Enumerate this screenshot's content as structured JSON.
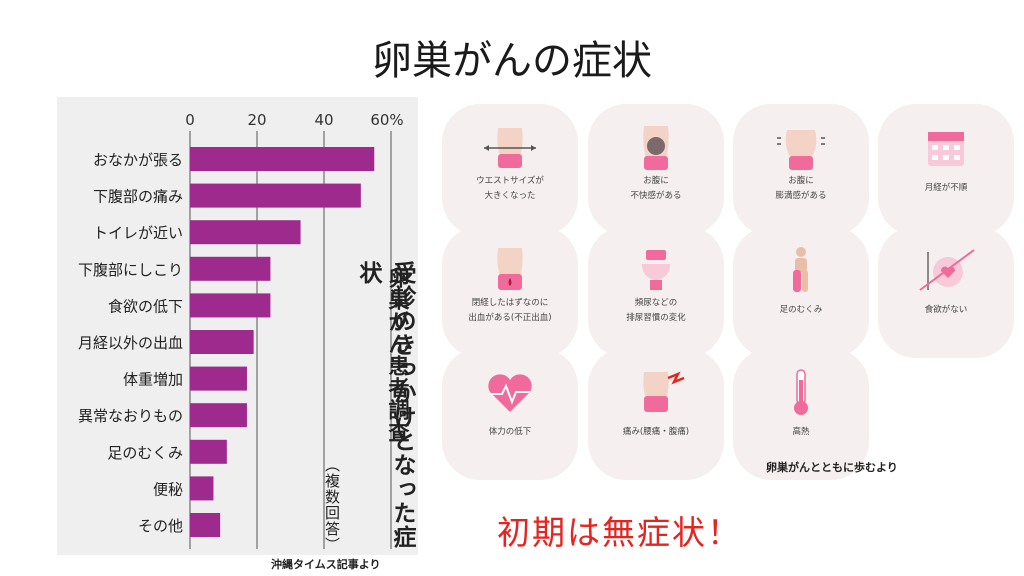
{
  "title": "卵巣がんの症状",
  "chart_data": {
    "type": "bar",
    "orientation": "horizontal",
    "categories": [
      "おなかが張る",
      "下腹部の痛み",
      "トイレが近い",
      "下腹部にしこり",
      "食欲の低下",
      "月経以外の出血",
      "体重増加",
      "異常なおりもの",
      "足のむくみ",
      "便秘",
      "その他"
    ],
    "values": [
      55,
      51,
      33,
      24,
      24,
      19,
      17,
      17,
      11,
      7,
      9
    ],
    "xlim": [
      0,
      60
    ],
    "ticks": [
      "0",
      "20",
      "40",
      "60%"
    ],
    "tick_values": [
      0,
      20,
      40,
      60
    ],
    "bar_color": "#9e2a8e",
    "grid": true,
    "title_lines": [
      "卵巣がん患者調査",
      "受診のきっかけとなった症状",
      "（複数回答）"
    ]
  },
  "source_left": "沖縄タイムス記事より",
  "symptom_tiles": [
    {
      "lines": [
        "ウエストサイズが",
        "大きくなった"
      ],
      "icon": "waist-measure-icon"
    },
    {
      "lines": [
        "お腹に",
        "不快感がある"
      ],
      "icon": "abdomen-discomfort-icon"
    },
    {
      "lines": [
        "お腹に",
        "膨満感がある"
      ],
      "icon": "abdomen-bloating-icon"
    },
    {
      "lines": [
        "月経が不順"
      ],
      "icon": "calendar-icon"
    },
    {
      "lines": [
        "閉経したはずなのに",
        "出血がある(不正出血)"
      ],
      "icon": "bleeding-icon"
    },
    {
      "lines": [
        "頻尿などの",
        "排尿習慣の変化"
      ],
      "icon": "toilet-icon"
    },
    {
      "lines": [
        "足のむくみ"
      ],
      "icon": "leg-swelling-icon"
    },
    {
      "lines": [
        "食欲がない"
      ],
      "icon": "no-appetite-icon"
    },
    {
      "lines": [
        "体力の低下"
      ],
      "icon": "heart-pulse-icon"
    },
    {
      "lines": [
        "痛み(腰痛・腹痛)"
      ],
      "icon": "pain-icon"
    },
    {
      "lines": [
        "高熱"
      ],
      "icon": "thermometer-icon"
    }
  ],
  "source_right": "卵巣がんとともに歩むより",
  "warning": "初期は無症状！",
  "colors": {
    "accent_pink": "#f06a9b",
    "warning_red": "#e6231e",
    "tile_bg": "#f6efef"
  }
}
